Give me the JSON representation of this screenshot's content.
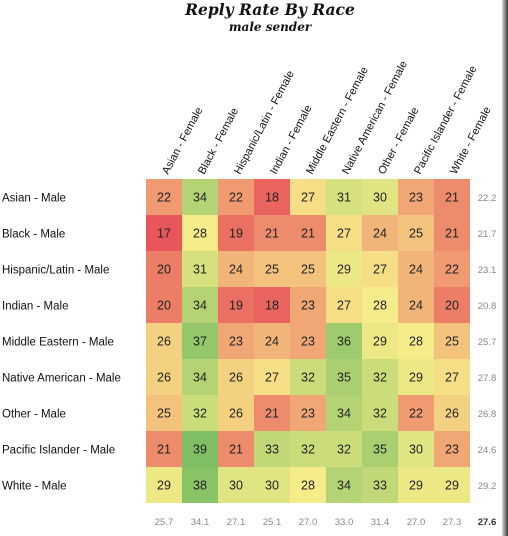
{
  "chart_data": {
    "type": "heatmap",
    "title": "Reply Rate By Race",
    "subtitle": "male sender",
    "columns": [
      "Asian - Female",
      "Black - Female",
      "Hispanic/Latin - Female",
      "Indian - Female",
      "Middle Eastern - Female",
      "Native American - Female",
      "Other - Female",
      "Pacific Islander - Female",
      "White - Female"
    ],
    "rows": [
      "Asian - Male",
      "Black - Male",
      "Hispanic/Latin - Male",
      "Indian - Male",
      "Middle Eastern - Male",
      "Native American - Male",
      "Other - Male",
      "Pacific Islander - Male",
      "White - Male"
    ],
    "values": [
      [
        22,
        34,
        22,
        18,
        27,
        31,
        30,
        23,
        21
      ],
      [
        17,
        28,
        19,
        21,
        21,
        27,
        24,
        25,
        21
      ],
      [
        20,
        31,
        24,
        25,
        25,
        29,
        27,
        24,
        22
      ],
      [
        20,
        34,
        19,
        18,
        23,
        27,
        28,
        24,
        20
      ],
      [
        26,
        37,
        23,
        24,
        23,
        36,
        29,
        28,
        25
      ],
      [
        26,
        34,
        26,
        27,
        32,
        35,
        32,
        29,
        27
      ],
      [
        25,
        32,
        26,
        21,
        23,
        34,
        32,
        22,
        26
      ],
      [
        21,
        39,
        21,
        33,
        32,
        32,
        35,
        30,
        23
      ],
      [
        29,
        38,
        30,
        30,
        28,
        34,
        33,
        29,
        29
      ]
    ],
    "row_totals": [
      "22.2",
      "21.7",
      "23.1",
      "20.8",
      "25.7",
      "27.8",
      "26.8",
      "24.6",
      "29.2"
    ],
    "column_totals": [
      "25.7",
      "34.1",
      "27.1",
      "25.1",
      "27.0",
      "33.0",
      "31.4",
      "27.0",
      "27.3"
    ],
    "grand_total": "27.6",
    "color_scale": {
      "low": "#e8555b",
      "mid": "#f7ec8a",
      "high": "#7dbf62"
    }
  }
}
